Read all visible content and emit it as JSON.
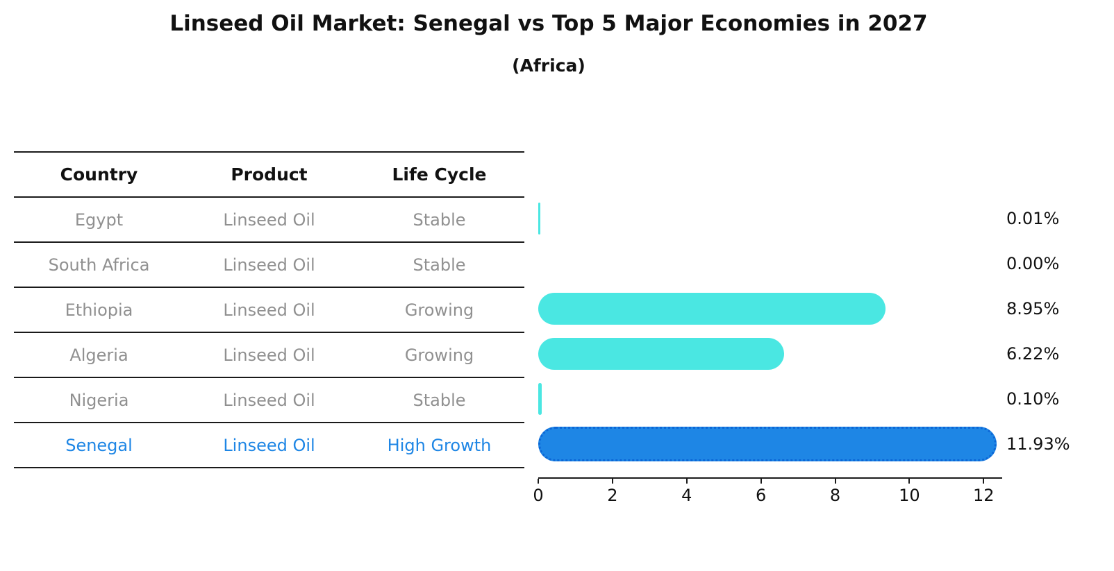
{
  "chart_data": {
    "type": "bar",
    "orientation": "horizontal",
    "title": "Linseed Oil Market: Senegal vs Top 5 Major Economies in 2027",
    "subtitle": "(Africa)",
    "unit": "%",
    "xlim": [
      0,
      12.5
    ],
    "x_ticks": [
      0,
      2,
      4,
      6,
      8,
      10,
      12
    ],
    "grid": false,
    "legend": false,
    "rows": [
      {
        "country": "Egypt",
        "product": "Linseed Oil",
        "life_cycle": "Stable",
        "value": 0.01,
        "label": "0.01%",
        "highlight": false
      },
      {
        "country": "South Africa",
        "product": "Linseed Oil",
        "life_cycle": "Stable",
        "value": 0.0,
        "label": "0.00%",
        "highlight": false
      },
      {
        "country": "Ethiopia",
        "product": "Linseed Oil",
        "life_cycle": "Growing",
        "value": 8.95,
        "label": "8.95%",
        "highlight": false
      },
      {
        "country": "Algeria",
        "product": "Linseed Oil",
        "life_cycle": "Growing",
        "value": 6.22,
        "label": "6.22%",
        "highlight": false
      },
      {
        "country": "Nigeria",
        "product": "Linseed Oil",
        "life_cycle": "Stable",
        "value": 0.1,
        "label": "0.10%",
        "highlight": false
      },
      {
        "country": "Senegal",
        "product": "Linseed Oil",
        "life_cycle": "High Growth",
        "value": 11.93,
        "label": "11.93%",
        "highlight": true
      }
    ],
    "colors": {
      "bar": "#4ae7e2",
      "highlight_bar": "#1e86e5",
      "highlight_border": "#0c66d6",
      "row_text": "#909090",
      "highlight_text": "#1e86e5",
      "label_text": "#111111",
      "axis": "#1a1a1a"
    }
  },
  "table": {
    "headers": [
      "Country",
      "Product",
      "Life Cycle"
    ]
  }
}
